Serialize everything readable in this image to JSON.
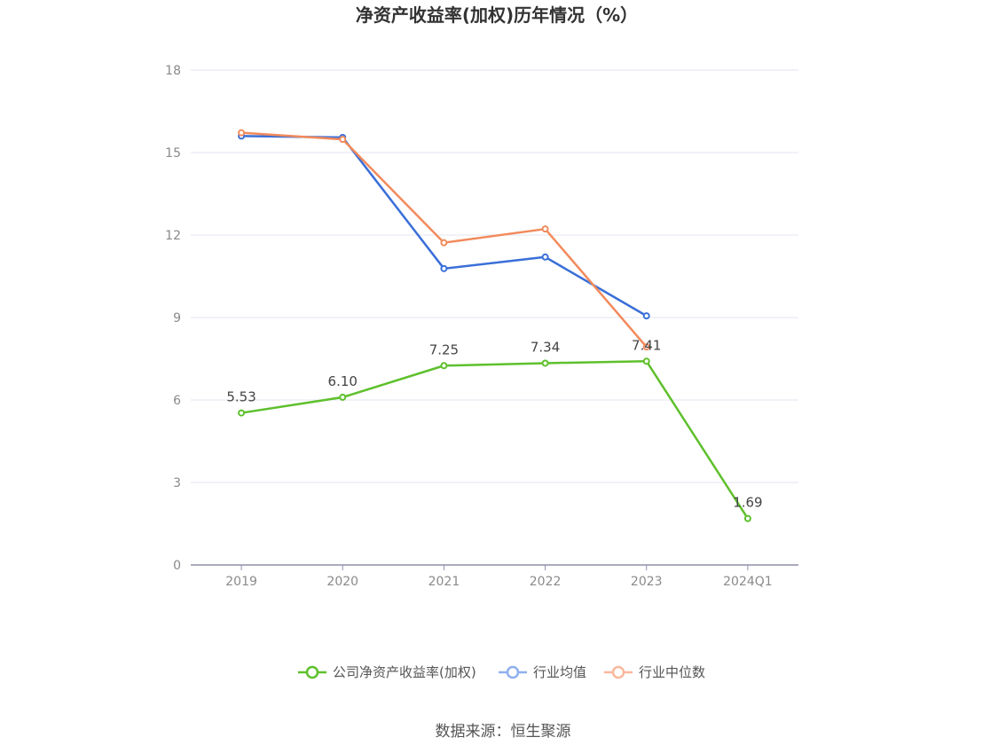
{
  "chart_data": {
    "type": "line",
    "title": "净资产收益率(加权)历年情况（%）",
    "categories": [
      "2019",
      "2020",
      "2021",
      "2022",
      "2023",
      "2024Q1"
    ],
    "ylim": [
      0,
      18
    ],
    "yticks": [
      0,
      3,
      6,
      9,
      12,
      15,
      18
    ],
    "grid": true,
    "legend_position": "bottom-center",
    "series": [
      {
        "name": "公司净资产收益率(加权)",
        "color": "#5ec02c",
        "values": [
          5.53,
          6.1,
          7.25,
          7.34,
          7.41,
          1.69
        ],
        "labels": [
          "5.53",
          "6.10",
          "7.25",
          "7.34",
          "7.41",
          "1.69"
        ]
      },
      {
        "name": "行业均值",
        "color": "#3a6fd8",
        "values": [
          15.6,
          15.55,
          10.78,
          11.2,
          9.06,
          null
        ]
      },
      {
        "name": "行业中位数",
        "color": "#f28a5c",
        "values": [
          15.72,
          15.48,
          11.72,
          12.22,
          7.93,
          null
        ]
      }
    ],
    "legend_colors": [
      "#5ec02c",
      "#8fb0ee",
      "#f9b89c"
    ]
  },
  "source_text": "数据来源：恒生聚源"
}
